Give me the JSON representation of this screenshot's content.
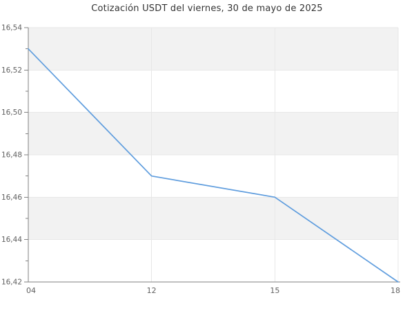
{
  "page": {
    "title": "Cotización USDT del viernes, 30 de mayo de 2025"
  },
  "chart_data": {
    "type": "line",
    "title": "Cotización USDT del viernes, 30 de mayo de 2025",
    "x_categories": [
      "04",
      "12",
      "15",
      "18"
    ],
    "series": [
      {
        "name": "USDT",
        "values": [
          16.53,
          16.47,
          16.46,
          16.42
        ]
      }
    ],
    "xlabel": "",
    "ylabel": "",
    "ylim": [
      16.42,
      16.54
    ],
    "ytick_interval": 0.02,
    "yminor_tick_interval": 0.01,
    "ytick_labels": [
      "16,42",
      "16,44",
      "16,46",
      "16,48",
      "16,50",
      "16,52",
      "16,54"
    ],
    "decimal_separator": ",",
    "legend_position": "none",
    "grid": {
      "horizontal_gridlines": true,
      "vertical_gridlines": true,
      "alternating_horizontal_bands": true
    },
    "colors": {
      "line": "#5f9dde",
      "band": "#f2f2f2",
      "gridline": "#e7e7e7",
      "axis": "#828282",
      "tick_label": "#606060",
      "title": "#333333",
      "background": "#ffffff"
    }
  }
}
